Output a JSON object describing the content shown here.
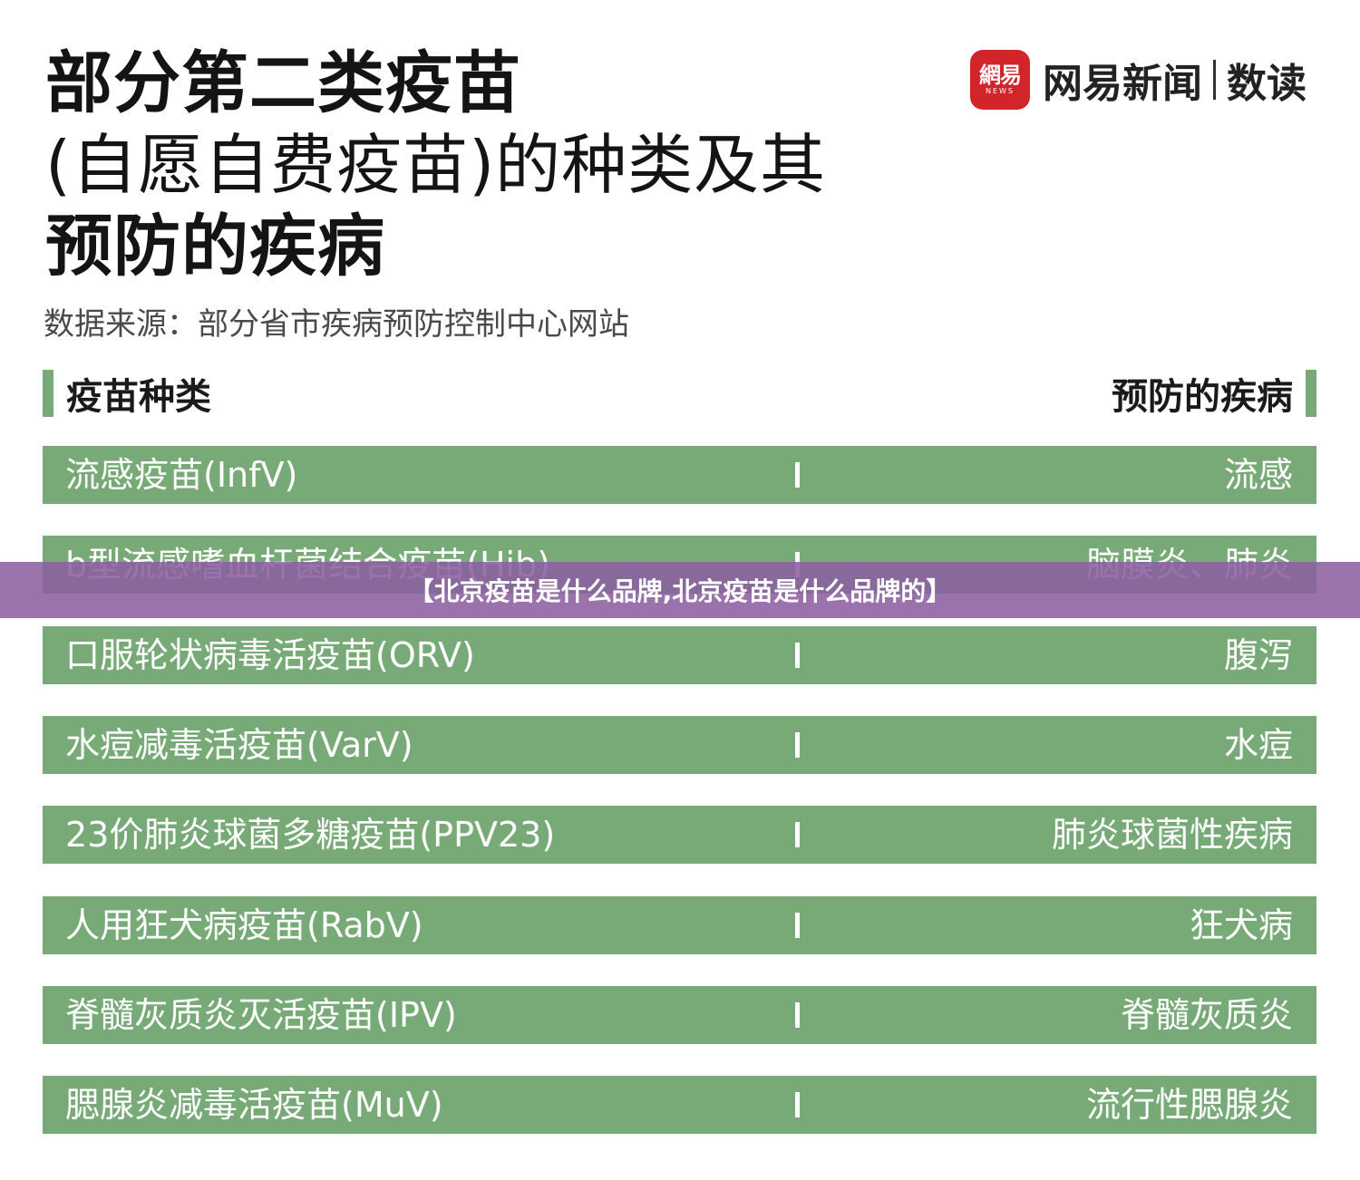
{
  "title": {
    "line1": "部分第二类疫苗",
    "line2": "(自愿自费疫苗)的种类及其",
    "line3": "预防的疾病"
  },
  "source": "数据来源：部分省市疾病预防控制中心网站",
  "logo": {
    "badge_cn": "網易",
    "badge_en": "NEWS",
    "brand": "网易新闻",
    "sub": "数读"
  },
  "headers": {
    "left": "疫苗种类",
    "right": "预防的疾病"
  },
  "rows": [
    {
      "vaccine": "流感疫苗(InfV)",
      "disease": "流感"
    },
    {
      "vaccine": "b型流感嗜血杆菌结合疫苗(Hib)",
      "disease": "脑膜炎、肺炎"
    },
    {
      "vaccine": "口服轮状病毒活疫苗(ORV)",
      "disease": "腹泻"
    },
    {
      "vaccine": "水痘减毒活疫苗(VarV)",
      "disease": "水痘"
    },
    {
      "vaccine": "23价肺炎球菌多糖疫苗(PPV23)",
      "disease": "肺炎球菌性疾病"
    },
    {
      "vaccine": "人用狂犬病疫苗(RabV)",
      "disease": "狂犬病"
    },
    {
      "vaccine": "脊髓灰质炎灭活疫苗(IPV)",
      "disease": "脊髓灰质炎"
    },
    {
      "vaccine": "腮腺炎减毒活疫苗(MuV)",
      "disease": "流行性腮腺炎"
    }
  ],
  "banner": "【北京疫苗是什么品牌,北京疫苗是什么品牌的】",
  "colors": {
    "row_green": "#77aa77",
    "banner_purple": "#8c5fa0",
    "logo_red": "#d2252b"
  }
}
